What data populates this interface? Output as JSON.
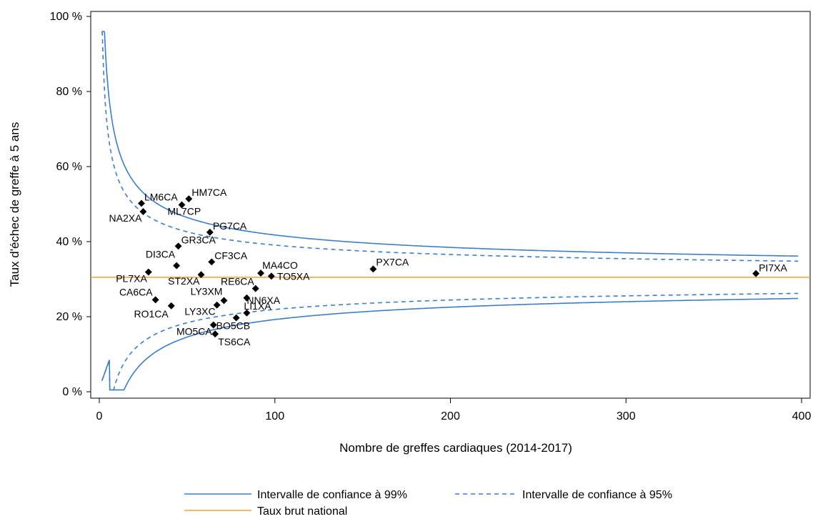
{
  "chart_data": {
    "type": "scatter",
    "title": "",
    "xlabel": "Nombre de greffes cardiaques (2014-2017)",
    "ylabel": "Taux d'échec de greffe à 5 ans",
    "xlim": [
      0,
      400
    ],
    "ylim": [
      0,
      100
    ],
    "xticks": [
      0,
      100,
      200,
      300,
      400
    ],
    "yticks": [
      0,
      20,
      40,
      60,
      80,
      100
    ],
    "ytick_labels": [
      "0 %",
      "20 %",
      "40 %",
      "60 %",
      "80 %",
      "100 %"
    ],
    "national_rate": 30.5,
    "points": [
      {
        "label": "LM6CA",
        "x": 24,
        "y": 50.2
      },
      {
        "label": "NA2XA",
        "x": 25,
        "y": 48.0
      },
      {
        "label": "HM7CA",
        "x": 51,
        "y": 51.4
      },
      {
        "label": "ML7CP",
        "x": 47,
        "y": 49.8
      },
      {
        "label": "PG7CA",
        "x": 63,
        "y": 42.5
      },
      {
        "label": "GR3CA",
        "x": 45,
        "y": 38.8
      },
      {
        "label": "DI3CA",
        "x": 44,
        "y": 33.6
      },
      {
        "label": "CF3CA",
        "x": 64,
        "y": 34.6
      },
      {
        "label": "PL7XA",
        "x": 28,
        "y": 31.9
      },
      {
        "label": "ST2XA",
        "x": 58,
        "y": 31.2
      },
      {
        "label": "MA4CO",
        "x": 92,
        "y": 31.6
      },
      {
        "label": "TO5XA",
        "x": 98,
        "y": 30.8
      },
      {
        "label": "RE6CA",
        "x": 89,
        "y": 27.5
      },
      {
        "label": "CA6CA",
        "x": 32,
        "y": 24.5
      },
      {
        "label": "LY3XM",
        "x": 71,
        "y": 24.3
      },
      {
        "label": "NN6XA",
        "x": 84,
        "y": 25.0
      },
      {
        "label": "RO1CA",
        "x": 41,
        "y": 22.9
      },
      {
        "label": "LY3XC",
        "x": 67,
        "y": 23.1
      },
      {
        "label": "LI1XA",
        "x": 84,
        "y": 21.0
      },
      {
        "label": "BO5CB",
        "x": 78,
        "y": 19.7
      },
      {
        "label": "MO5CA",
        "x": 65,
        "y": 17.8
      },
      {
        "label": "TS6CA",
        "x": 66,
        "y": 15.4
      },
      {
        "label": "PX7CA",
        "x": 156,
        "y": 32.7
      },
      {
        "label": "PI7XA",
        "x": 374,
        "y": 31.5
      }
    ],
    "series": [
      {
        "name": "Intervalle de confiance à 99%",
        "style": "solid",
        "color": "#3a7dc9",
        "z": 2.576
      },
      {
        "name": "Intervalle de confiance à 95%",
        "style": "dashed",
        "color": "#3a7dc9",
        "z": 1.96
      },
      {
        "name": "Taux brut national",
        "style": "solid",
        "color": "#f0a431"
      }
    ],
    "legend_position": "bottom",
    "grid": false
  },
  "legend": {
    "ci99": "Intervalle de confiance à 99%",
    "ci95": "Intervalle de confiance à 95%",
    "national": "Taux brut national"
  }
}
